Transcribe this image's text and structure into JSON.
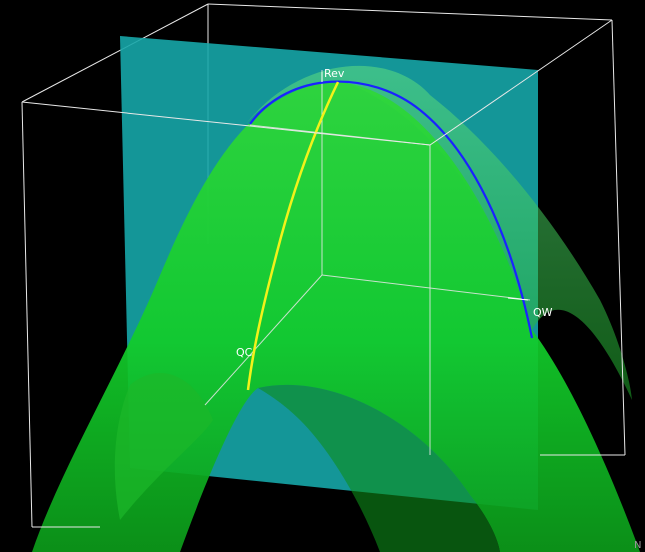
{
  "labels": {
    "rev": "Rev",
    "qw": "QW",
    "qc": "QC",
    "corner": "N"
  },
  "colors": {
    "background": "#000000",
    "bounding_box": "#e8e8e8",
    "plane": "#16a6a8",
    "surface": "#22d030",
    "surface_dark": "#0f8f18",
    "intersection_curve": "#1a22ff",
    "path_curve": "#f2f21a"
  },
  "scene": {
    "surface_shape": "downward paraboloid",
    "plane_orientation": "vertical",
    "projection": "perspective"
  }
}
